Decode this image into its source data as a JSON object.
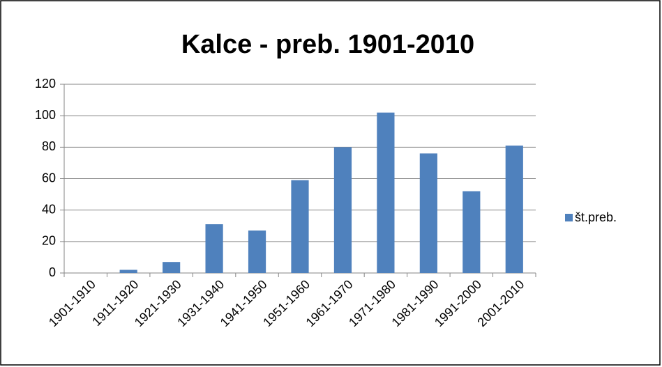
{
  "chart_data": {
    "type": "bar",
    "title": "Kalce - preb. 1901-2010",
    "categories": [
      "1901-1910",
      "1911-1920",
      "1921-1930",
      "1931-1940",
      "1941-1950",
      "1951-1960",
      "1961-1970",
      "1971-1980",
      "1981-1990",
      "1991-2000",
      "2001-2010"
    ],
    "series": [
      {
        "name": "št.preb.",
        "color": "#4f81bd",
        "values": [
          0,
          2,
          7,
          31,
          27,
          59,
          80,
          102,
          76,
          52,
          81
        ]
      }
    ],
    "ylim": [
      0,
      120
    ],
    "yticks": [
      0,
      20,
      40,
      60,
      80,
      100,
      120
    ],
    "grid": true,
    "legend": "right"
  }
}
